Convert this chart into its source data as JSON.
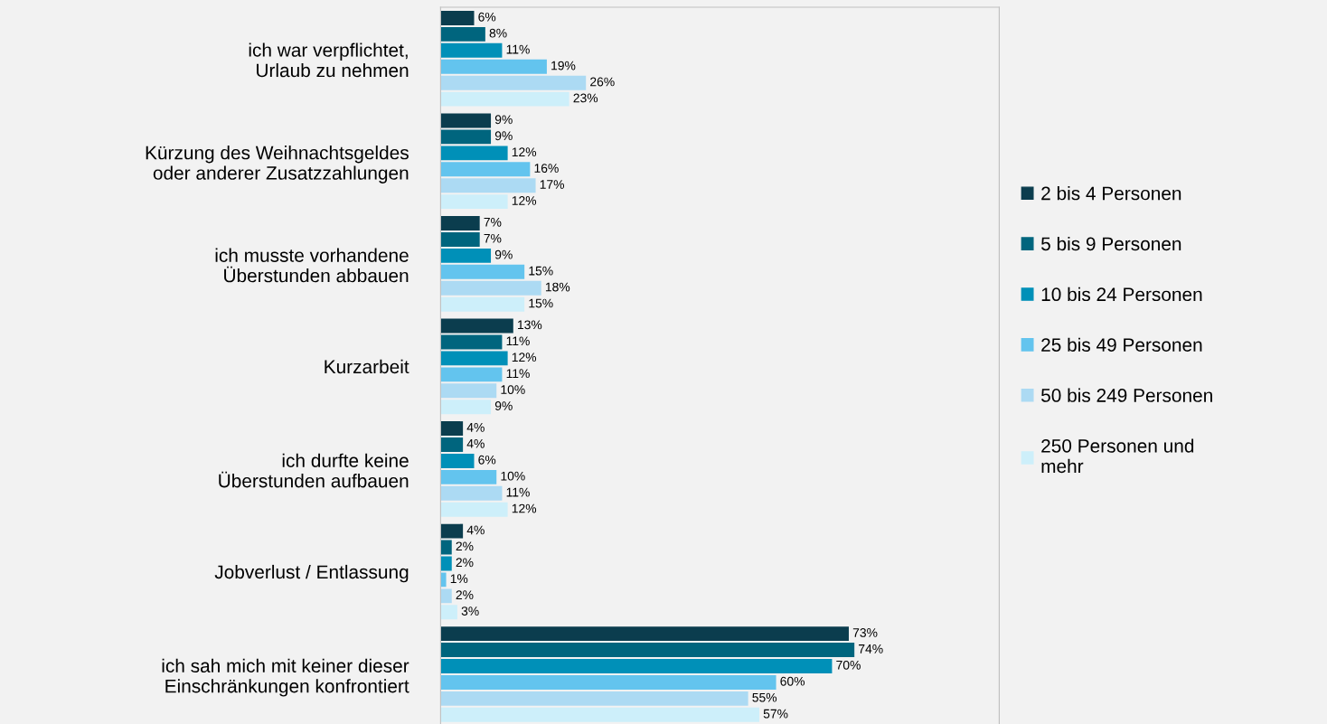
{
  "chart_data": {
    "type": "bar",
    "orientation": "horizontal",
    "legend": "right",
    "grid": false,
    "tick_labels": "y",
    "categories": [
      "ich war verpflichtet,\nUrlaub zu nehmen",
      "Kürzung des Weihnachtsgeldes\noder anderer Zusatzzahlungen",
      "ich musste vorhandene\nÜberstunden abbauen",
      "Kurzarbeit",
      "ich durfte keine\nÜberstunden aufbauen",
      "Jobverlust / Entlassung",
      "ich sah mich mit keiner dieser\nEinschränkungen konfrontiert"
    ],
    "series": [
      {
        "name": "2 bis 4 Personen",
        "color": "#0b3d4e",
        "values": [
          6,
          9,
          7,
          13,
          4,
          4,
          73
        ],
        "value_labels": [
          "6%",
          "9%",
          "7%",
          "13%",
          "4%",
          "4%",
          "73%"
        ]
      },
      {
        "name": "5 bis 9 Personen",
        "color": "#00657e",
        "values": [
          8,
          9,
          7,
          11,
          4,
          2,
          74
        ],
        "value_labels": [
          "8%",
          "9%",
          "7%",
          "11%",
          "4%",
          "2%",
          "74%"
        ]
      },
      {
        "name": "10 bis 24 Personen",
        "color": "#0090b8",
        "values": [
          11,
          12,
          9,
          12,
          6,
          2,
          70
        ],
        "value_labels": [
          "11%",
          "12%",
          "9%",
          "12%",
          "6%",
          "2%",
          "70%"
        ]
      },
      {
        "name": "25 bis 49 Personen",
        "color": "#63c4ee",
        "values": [
          19,
          16,
          15,
          11,
          10,
          1,
          60
        ],
        "value_labels": [
          "19%",
          "16%",
          "15%",
          "11%",
          "10%",
          "1%",
          "60%"
        ]
      },
      {
        "name": "50 bis 249 Personen",
        "color": "#acdaf3",
        "values": [
          26,
          17,
          18,
          10,
          11,
          2,
          55
        ],
        "value_labels": [
          "26%",
          "17%",
          "18%",
          "10%",
          "11%",
          "2%",
          "55%"
        ]
      },
      {
        "name": "250 Personen und\nmehr",
        "color": "#cdeffa",
        "values": [
          23,
          12,
          15,
          9,
          12,
          3,
          57
        ],
        "value_labels": [
          "23%",
          "12%",
          "15%",
          "9%",
          "12%",
          "3%",
          "57%"
        ]
      }
    ]
  }
}
